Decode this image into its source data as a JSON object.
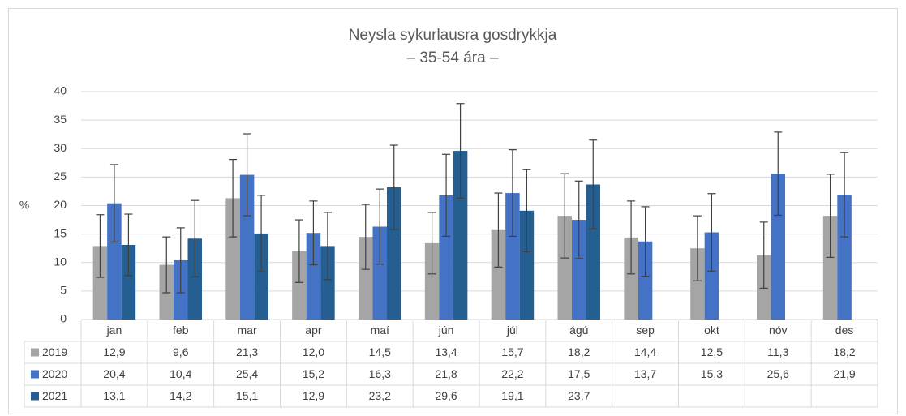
{
  "chart_data": {
    "type": "bar",
    "title": "Neysla sykurlausra gosdrykkja",
    "subtitle": "– 35-54 ára –",
    "y_label": "%",
    "categories": [
      "jan",
      "feb",
      "mar",
      "apr",
      "maí",
      "jún",
      "júl",
      "ágú",
      "sep",
      "okt",
      "nóv",
      "des"
    ],
    "series": [
      {
        "name": "2019",
        "color": "#a5a5a5",
        "values": [
          12.9,
          9.6,
          21.3,
          12.0,
          14.5,
          13.4,
          15.7,
          18.2,
          14.4,
          12.5,
          11.3,
          18.2
        ],
        "value_labels": [
          "12,9",
          "9,6",
          "21,3",
          "12,0",
          "14,5",
          "13,4",
          "15,7",
          "18,2",
          "14,4",
          "12,5",
          "11,3",
          "18,2"
        ],
        "errors": [
          5.5,
          4.9,
          6.8,
          5.5,
          5.7,
          5.4,
          6.5,
          7.4,
          6.4,
          5.7,
          5.8,
          7.3
        ]
      },
      {
        "name": "2020",
        "color": "#4472c4",
        "values": [
          20.4,
          10.4,
          25.4,
          15.2,
          16.3,
          21.8,
          22.2,
          17.5,
          13.7,
          15.3,
          25.6,
          21.9
        ],
        "value_labels": [
          "20,4",
          "10,4",
          "25,4",
          "15,2",
          "16,3",
          "21,8",
          "22,2",
          "17,5",
          "13,7",
          "15,3",
          "25,6",
          "21,9"
        ],
        "errors": [
          6.8,
          5.7,
          7.2,
          5.6,
          6.6,
          7.2,
          7.6,
          6.8,
          6.1,
          6.8,
          7.3,
          7.4
        ]
      },
      {
        "name": "2021",
        "color": "#255e91",
        "values": [
          13.1,
          14.2,
          15.1,
          12.9,
          23.2,
          29.6,
          19.1,
          23.7,
          null,
          null,
          null,
          null
        ],
        "value_labels": [
          "13,1",
          "14,2",
          "15,1",
          "12,9",
          "23,2",
          "29,6",
          "19,1",
          "23,7",
          null,
          null,
          null,
          null
        ],
        "errors": [
          5.4,
          6.7,
          6.7,
          5.9,
          7.4,
          8.3,
          7.2,
          7.8,
          null,
          null,
          null,
          null
        ]
      }
    ],
    "ylim": [
      0,
      40
    ],
    "yticks": [
      0,
      5,
      10,
      15,
      20,
      25,
      30,
      35,
      40
    ],
    "grid": true
  }
}
